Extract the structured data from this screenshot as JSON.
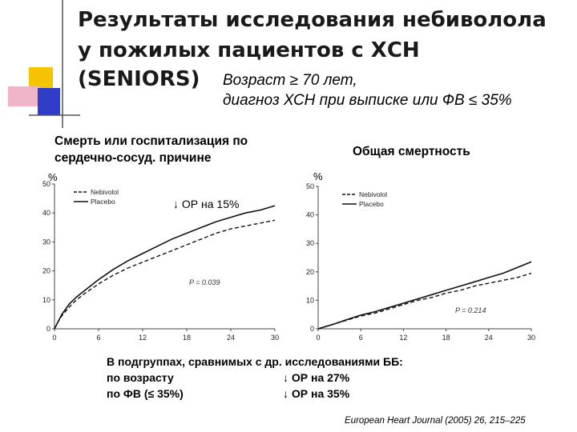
{
  "slide": {
    "title_line1": "Результаты исследования небиволола",
    "title_line2": "у пожилых пациентов с ХСН",
    "title_line3": "(SENIORS)",
    "subtitle_line1": "Возраст ≥ 70 лет,",
    "subtitle_line2": "диагноз ХСН при выписке или ФВ ≤ 35%",
    "risk_reduction_main": "ОР на 15%",
    "bottom_line1": "В подгруппах, сравнимых с др. исследованиями ББ:",
    "bottom_line2_label": "по возрасту",
    "bottom_line2_value": "ОР на 27%",
    "bottom_line3_label": "по ФВ (≤ 35%)",
    "bottom_line3_value": "ОР на 35%",
    "reference": "European Heart Journal (2005) 26, 215–225",
    "colors": {
      "accent_yellow": "#f5c400",
      "accent_blue": "#2f3dc8",
      "accent_pink": "#f0b4c8",
      "curve": "#111111"
    }
  },
  "chart_data": [
    {
      "type": "line",
      "title": "Смерть или госпитализация по сердечно-сосуд. причине",
      "title_line1": "Смерть или госпитализация по",
      "title_line2": "сердечно-сосуд. причине",
      "ylabel": "%",
      "xlim": [
        0,
        30
      ],
      "ylim": [
        0,
        50
      ],
      "xticks": [
        0,
        6,
        12,
        18,
        24,
        30
      ],
      "yticks": [
        0,
        10,
        20,
        30,
        40,
        50
      ],
      "legend": "top-left",
      "p_value": "P = 0.039",
      "series": [
        {
          "name": "Nebivolol",
          "style": "dashed",
          "x": [
            0,
            0.5,
            1,
            2,
            3,
            4,
            6,
            8,
            10,
            12,
            14,
            16,
            18,
            20,
            22,
            24,
            26,
            28,
            30
          ],
          "y": [
            0,
            2.5,
            4.5,
            7.5,
            10,
            12,
            15.5,
            18.5,
            21,
            23,
            25,
            27,
            29,
            31,
            33,
            34.5,
            35.5,
            36.5,
            37.5
          ]
        },
        {
          "name": "Placebo",
          "style": "solid",
          "x": [
            0,
            0.5,
            1,
            2,
            3,
            4,
            6,
            8,
            10,
            12,
            14,
            16,
            18,
            20,
            22,
            24,
            26,
            28,
            30
          ],
          "y": [
            0,
            2.5,
            5,
            8.5,
            11,
            13,
            17,
            20.5,
            23.5,
            26,
            28.5,
            31,
            33,
            35,
            37,
            38.5,
            40,
            41,
            42.5
          ]
        }
      ]
    },
    {
      "type": "line",
      "title": "Общая смертность",
      "ylabel": "%",
      "xlim": [
        0,
        30
      ],
      "ylim": [
        0,
        50
      ],
      "xticks": [
        0,
        6,
        12,
        18,
        24,
        30
      ],
      "yticks": [
        0,
        10,
        20,
        30,
        40,
        50
      ],
      "legend": "top-left",
      "p_value": "P = 0.214",
      "series": [
        {
          "name": "Nebivolol",
          "style": "dashed",
          "x": [
            0,
            2,
            4,
            6,
            8,
            10,
            12,
            14,
            16,
            18,
            20,
            22,
            24,
            26,
            28,
            30
          ],
          "y": [
            0,
            1.5,
            3,
            4.5,
            5.5,
            7,
            8.5,
            10,
            11,
            12.5,
            13.5,
            15,
            16,
            17,
            18,
            19.5
          ]
        },
        {
          "name": "Placebo",
          "style": "solid",
          "x": [
            0,
            2,
            4,
            6,
            8,
            10,
            12,
            14,
            16,
            18,
            20,
            22,
            24,
            26,
            28,
            30
          ],
          "y": [
            0,
            1.5,
            3.2,
            4.8,
            6,
            7.5,
            9,
            10.5,
            12,
            13.5,
            15,
            16.5,
            18,
            19.5,
            21.5,
            23.5
          ]
        }
      ]
    }
  ]
}
